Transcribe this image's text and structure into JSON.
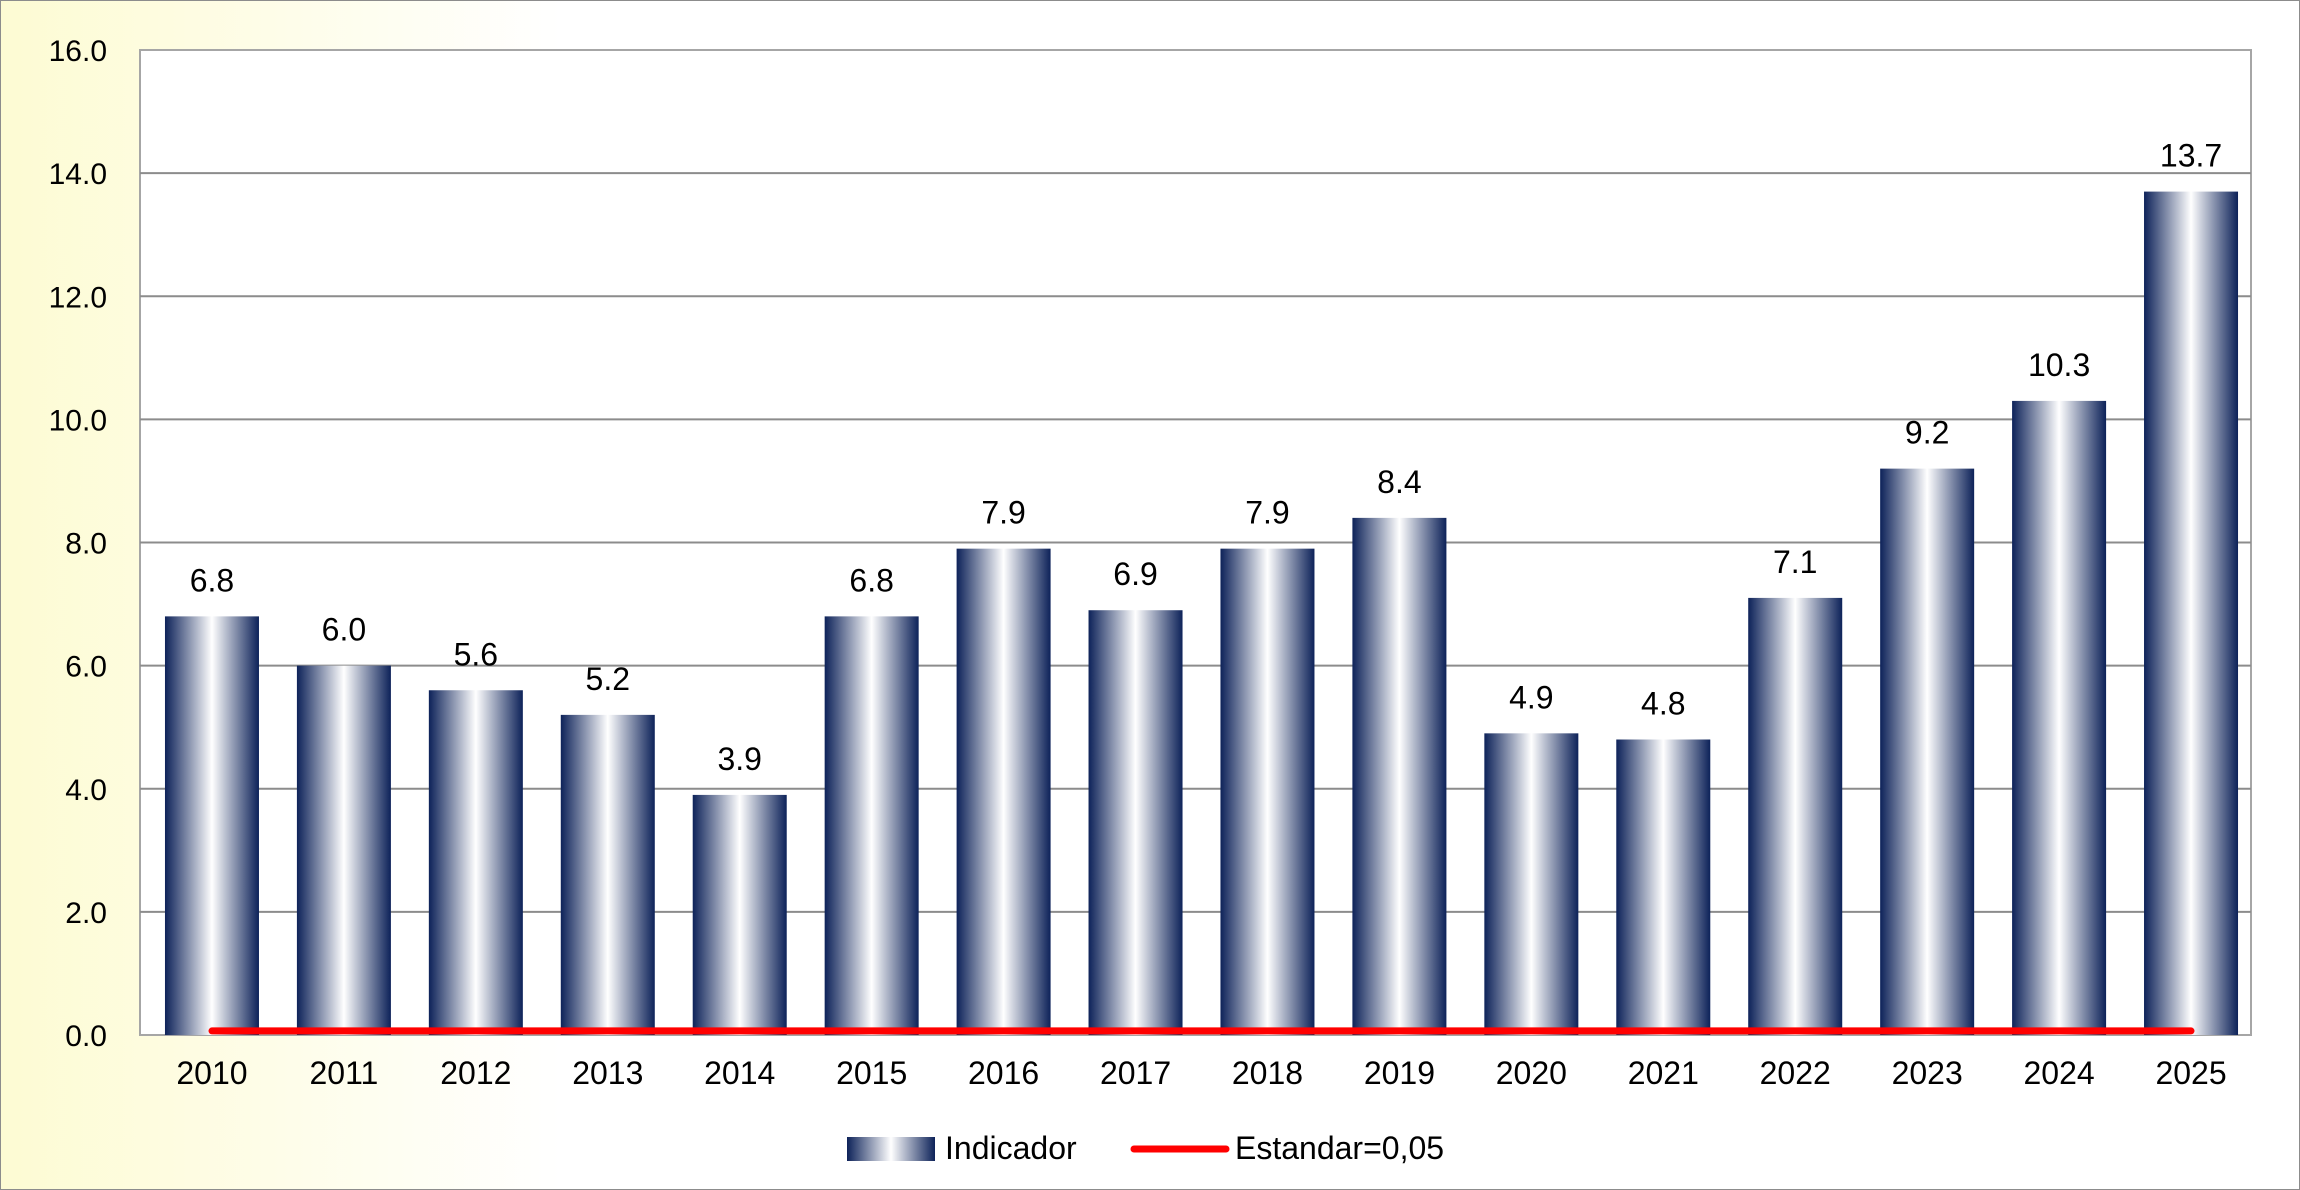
{
  "chart_data": {
    "type": "bar",
    "categories": [
      "2010",
      "2011",
      "2012",
      "2013",
      "2014",
      "2015",
      "2016",
      "2017",
      "2018",
      "2019",
      "2020",
      "2021",
      "2022",
      "2023",
      "2024",
      "2025"
    ],
    "series": [
      {
        "name": "Indicador",
        "values": [
          6.8,
          6.0,
          5.6,
          5.2,
          3.9,
          6.8,
          7.9,
          6.9,
          7.9,
          8.4,
          4.9,
          4.8,
          7.1,
          9.2,
          10.3,
          13.7
        ],
        "data_labels": [
          "6.8",
          "6.0",
          "5.6",
          "5.2",
          "3.9",
          "6.8",
          "7.9",
          "6.9",
          "7.9",
          "8.4",
          "4.9",
          "4.8",
          "7.1",
          "9.2",
          "10.3",
          "13.7"
        ],
        "color_dark": "#0d2259",
        "color_light": "#ffffff"
      },
      {
        "name": "Estandar=0,05",
        "type": "line",
        "value": 0.05,
        "color": "#ff0000"
      }
    ],
    "ylim": [
      0,
      16
    ],
    "yticks": [
      "0.0",
      "2.0",
      "4.0",
      "6.0",
      "8.0",
      "10.0",
      "12.0",
      "14.0",
      "16.0"
    ],
    "grid": true,
    "legend_position": "bottom"
  }
}
